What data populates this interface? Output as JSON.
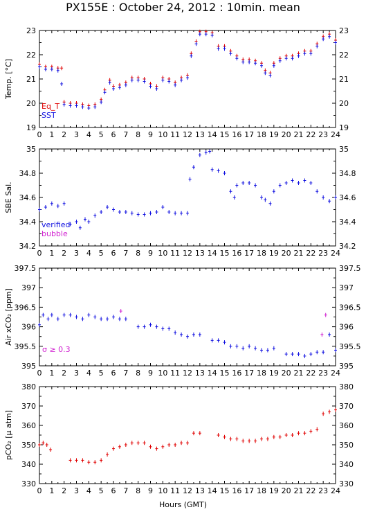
{
  "title": "PX155E : October 24, 2012 : 10min. mean",
  "x_axis_title": "Hours (GMT)",
  "chart_data": [
    {
      "type": "scatter",
      "ylabel": "Temp. [°C]",
      "xlim": [
        0,
        24
      ],
      "ylim": [
        19,
        23
      ],
      "yticks": [
        "19",
        "20",
        "21",
        "22",
        "23"
      ],
      "xticks": [
        "0",
        "1",
        "2",
        "3",
        "4",
        "5",
        "6",
        "7",
        "8",
        "9",
        "10",
        "11",
        "12",
        "13",
        "14",
        "15",
        "16",
        "17",
        "18",
        "19",
        "20",
        "21",
        "22",
        "23",
        "24"
      ],
      "legend": [
        {
          "label": "Eq_T",
          "color": "#e00000"
        },
        {
          "label": "SST",
          "color": "#1010e0"
        }
      ],
      "series": [
        {
          "name": "Eq_T",
          "color": "#e00000",
          "offset": 0.05,
          "x": [
            0,
            0.5,
            1,
            1.5,
            1.8,
            2,
            2.5,
            3,
            3.5,
            4,
            4.5,
            5,
            5.3,
            5.7,
            6,
            6.5,
            7,
            7.5,
            8,
            8.5,
            9,
            9.5,
            10,
            10.5,
            11,
            11.5,
            12,
            12.3,
            12.7,
            13,
            13.5,
            14,
            14.5,
            15,
            15.5,
            16,
            16.5,
            17,
            17.5,
            18,
            18.3,
            18.7,
            19,
            19.5,
            20,
            20.5,
            21,
            21.5,
            22,
            22.5,
            23,
            23.5,
            24
          ],
          "y": [
            21.55,
            21.45,
            21.45,
            21.4,
            21.4,
            20.0,
            19.95,
            19.95,
            19.9,
            19.85,
            19.9,
            20.1,
            20.5,
            20.9,
            20.65,
            20.7,
            20.8,
            21.0,
            21.0,
            20.95,
            20.75,
            20.65,
            21.0,
            20.95,
            20.8,
            21.0,
            21.1,
            22.0,
            22.5,
            22.9,
            22.9,
            22.85,
            22.3,
            22.3,
            22.1,
            21.9,
            21.75,
            21.75,
            21.7,
            21.6,
            21.3,
            21.2,
            21.6,
            21.8,
            21.9,
            21.9,
            22.0,
            22.1,
            22.1,
            22.4,
            22.7,
            22.8,
            22.55
          ]
        },
        {
          "name": "SST",
          "color": "#1010e0",
          "offset": 0,
          "x": [
            0,
            0.5,
            1,
            1.5,
            1.8,
            2,
            2.5,
            3,
            3.5,
            4,
            4.5,
            5,
            5.3,
            5.7,
            6,
            6.5,
            7,
            7.5,
            8,
            8.5,
            9,
            9.5,
            10,
            10.5,
            11,
            11.5,
            12,
            12.3,
            12.7,
            13,
            13.5,
            14,
            14.5,
            15,
            15.5,
            16,
            16.5,
            17,
            17.5,
            18,
            18.3,
            18.7,
            19,
            19.5,
            20,
            20.5,
            21,
            21.5,
            22,
            22.5,
            23,
            23.5,
            24
          ],
          "y": [
            21.5,
            21.4,
            21.4,
            21.35,
            20.8,
            19.95,
            19.9,
            19.9,
            19.85,
            19.8,
            19.85,
            20.05,
            20.45,
            20.85,
            20.6,
            20.65,
            20.75,
            20.95,
            20.95,
            20.9,
            20.7,
            20.6,
            20.95,
            20.9,
            20.75,
            20.95,
            21.05,
            21.95,
            22.45,
            22.85,
            22.85,
            22.8,
            22.25,
            22.25,
            22.05,
            21.85,
            21.7,
            21.7,
            21.65,
            21.55,
            21.25,
            21.15,
            21.55,
            21.75,
            21.85,
            21.85,
            21.95,
            22.05,
            22.05,
            22.35,
            22.65,
            22.75,
            22.5
          ]
        }
      ]
    },
    {
      "type": "scatter",
      "ylabel": "SBE Sal.",
      "xlim": [
        0,
        24
      ],
      "ylim": [
        34.2,
        35
      ],
      "yticks": [
        "34.2",
        "34.4",
        "34.6",
        "34.8",
        "35"
      ],
      "xticks": [
        "0",
        "1",
        "2",
        "3",
        "4",
        "5",
        "6",
        "7",
        "8",
        "9",
        "10",
        "11",
        "12",
        "13",
        "14",
        "15",
        "16",
        "17",
        "18",
        "19",
        "20",
        "21",
        "22",
        "23",
        "24"
      ],
      "legend": [
        {
          "label": "verified",
          "color": "#1010e0"
        },
        {
          "label": "bubble",
          "color": "#d020d0"
        }
      ],
      "series": [
        {
          "name": "verified",
          "color": "#1010e0",
          "x": [
            0,
            0.5,
            1,
            1.5,
            2,
            2.5,
            3,
            3.3,
            3.7,
            4,
            4.5,
            5,
            5.5,
            6,
            6.5,
            7,
            7.5,
            8,
            8.5,
            9,
            9.5,
            10,
            10.5,
            11,
            11.5,
            12,
            12.2,
            12.5,
            13,
            13.5,
            13.8,
            14,
            14.5,
            15,
            15.5,
            15.8,
            16,
            16.5,
            17,
            17.5,
            18,
            18.3,
            18.7,
            19,
            19.5,
            20,
            20.5,
            21,
            21.5,
            22,
            22.5,
            23,
            23.5,
            24
          ],
          "y": [
            34.5,
            34.52,
            34.55,
            34.53,
            34.55,
            34.38,
            34.4,
            34.35,
            34.42,
            34.4,
            34.45,
            34.48,
            34.52,
            34.5,
            34.48,
            34.48,
            34.47,
            34.46,
            34.46,
            34.47,
            34.48,
            34.52,
            34.48,
            34.47,
            34.47,
            34.47,
            34.75,
            34.85,
            34.95,
            34.97,
            34.98,
            34.83,
            34.82,
            34.8,
            34.65,
            34.6,
            34.7,
            34.72,
            34.72,
            34.7,
            34.6,
            34.58,
            34.55,
            34.65,
            34.7,
            34.72,
            34.74,
            34.72,
            34.74,
            34.72,
            34.65,
            34.6,
            34.57,
            34.6
          ]
        }
      ]
    },
    {
      "type": "scatter",
      "ylabel": "Air xCO₂ [ppm]",
      "xlim": [
        0,
        24
      ],
      "ylim": [
        395,
        397.5
      ],
      "yticks": [
        "395",
        "395.5",
        "396",
        "396.5",
        "397",
        "397.5"
      ],
      "xticks": [
        "0",
        "1",
        "2",
        "3",
        "4",
        "5",
        "6",
        "7",
        "8",
        "9",
        "10",
        "11",
        "12",
        "13",
        "14",
        "15",
        "16",
        "17",
        "18",
        "19",
        "20",
        "21",
        "22",
        "23",
        "24"
      ],
      "annotation": {
        "text": "σ ≥ 0.3",
        "color": "#d020d0"
      },
      "series": [
        {
          "name": "",
          "color": "#1010e0",
          "x": [
            0,
            0.3,
            0.7,
            1,
            1.5,
            2,
            2.5,
            3,
            3.5,
            4,
            4.5,
            5,
            5.5,
            6,
            6.5,
            7,
            8,
            8.5,
            9,
            9.5,
            10,
            10.5,
            11,
            11.5,
            12,
            12.5,
            13,
            14,
            14.5,
            15,
            15.5,
            16,
            16.5,
            17,
            17.5,
            18,
            18.5,
            19,
            20,
            20.5,
            21,
            21.5,
            22,
            22.5,
            23,
            23.5,
            24
          ],
          "y": [
            396.05,
            396.3,
            396.2,
            396.3,
            396.2,
            396.3,
            396.3,
            396.25,
            396.2,
            396.3,
            396.25,
            396.2,
            396.2,
            396.25,
            396.2,
            396.2,
            396.0,
            396.0,
            396.05,
            396.0,
            395.95,
            395.95,
            395.85,
            395.8,
            395.75,
            395.8,
            395.8,
            395.65,
            395.65,
            395.6,
            395.5,
            395.5,
            395.45,
            395.5,
            395.45,
            395.4,
            395.4,
            395.45,
            395.3,
            395.3,
            395.3,
            395.25,
            395.3,
            395.35,
            395.35,
            395.8,
            395.4
          ]
        },
        {
          "name": "",
          "color": "#d020d0",
          "x": [
            6.6,
            22.9,
            23.2
          ],
          "y": [
            396.4,
            395.8,
            396.3
          ]
        }
      ]
    },
    {
      "type": "scatter",
      "ylabel": "pCO₂ [μ atm]",
      "xlim": [
        0,
        24
      ],
      "ylim": [
        330,
        380
      ],
      "yticks": [
        "330",
        "340",
        "350",
        "360",
        "370",
        "380"
      ],
      "xticks": [
        "0",
        "1",
        "2",
        "3",
        "4",
        "5",
        "6",
        "7",
        "8",
        "9",
        "10",
        "11",
        "12",
        "13",
        "14",
        "15",
        "16",
        "17",
        "18",
        "19",
        "20",
        "21",
        "22",
        "23",
        "24"
      ],
      "series": [
        {
          "name": "",
          "color": "#e00000",
          "x": [
            0,
            0.3,
            0.6,
            0.9,
            2.5,
            3,
            3.5,
            4,
            4.5,
            5,
            5.5,
            6,
            6.5,
            7,
            7.5,
            8,
            8.5,
            9,
            9.5,
            10,
            10.5,
            11,
            11.5,
            12,
            12.5,
            13,
            14.5,
            15,
            15.5,
            16,
            16.5,
            17,
            17.5,
            18,
            18.5,
            19,
            19.5,
            20,
            20.5,
            21,
            21.5,
            22,
            22.5,
            23,
            23.5,
            24
          ],
          "y": [
            350,
            351,
            350,
            347.5,
            342,
            342,
            342,
            341,
            341,
            342,
            345,
            348,
            349,
            350,
            351,
            351,
            351,
            349,
            348,
            349,
            350,
            350,
            351,
            351,
            356,
            356,
            355,
            354,
            353,
            353,
            352,
            352,
            352,
            353,
            353,
            354,
            354,
            355,
            355,
            356,
            356,
            357,
            358,
            366,
            367,
            368
          ]
        }
      ]
    }
  ]
}
